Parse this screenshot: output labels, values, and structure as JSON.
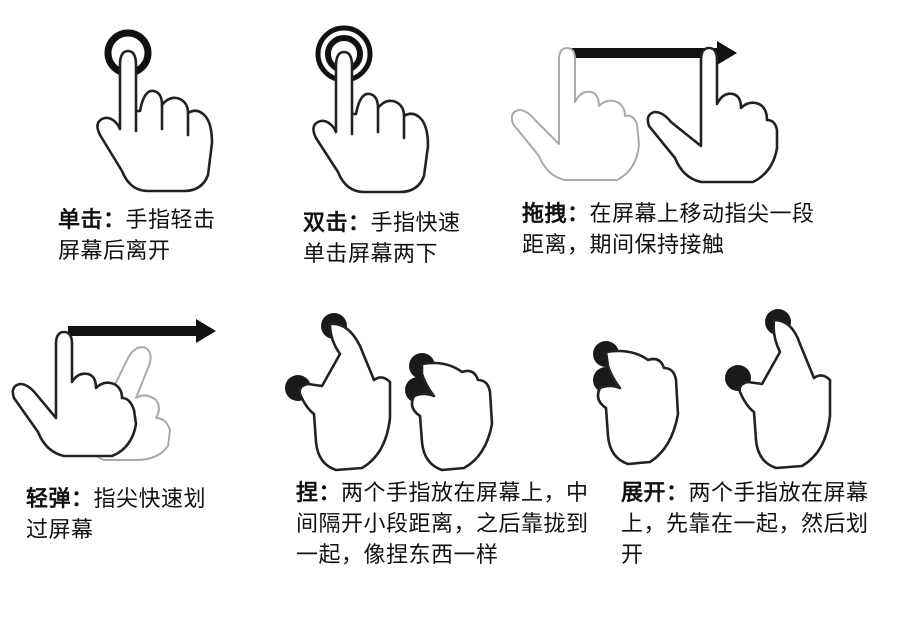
{
  "gestures": [
    {
      "term": "单击：",
      "desc": "手指轻击屏幕后离开",
      "icon": "tap-hand-icon"
    },
    {
      "term": "双击：",
      "desc": "手指快速单击屏幕两下",
      "icon": "double-tap-hand-icon"
    },
    {
      "term": "拖拽：",
      "desc": "在屏幕上移动指尖一段距离，期间保持接触",
      "icon": "drag-hand-icon"
    },
    {
      "term": "轻弹：",
      "desc": "指尖快速划过屏幕",
      "icon": "flick-hand-icon"
    },
    {
      "term": "捏：",
      "desc": "两个手指放在屏幕上，中间隔开小段距离，之后靠拢到一起，像捏东西一样",
      "icon": "pinch-hand-icon"
    },
    {
      "term": "展开：",
      "desc": "两个手指放在屏幕上，先靠在一起，然后划开",
      "icon": "spread-hand-icon"
    }
  ]
}
